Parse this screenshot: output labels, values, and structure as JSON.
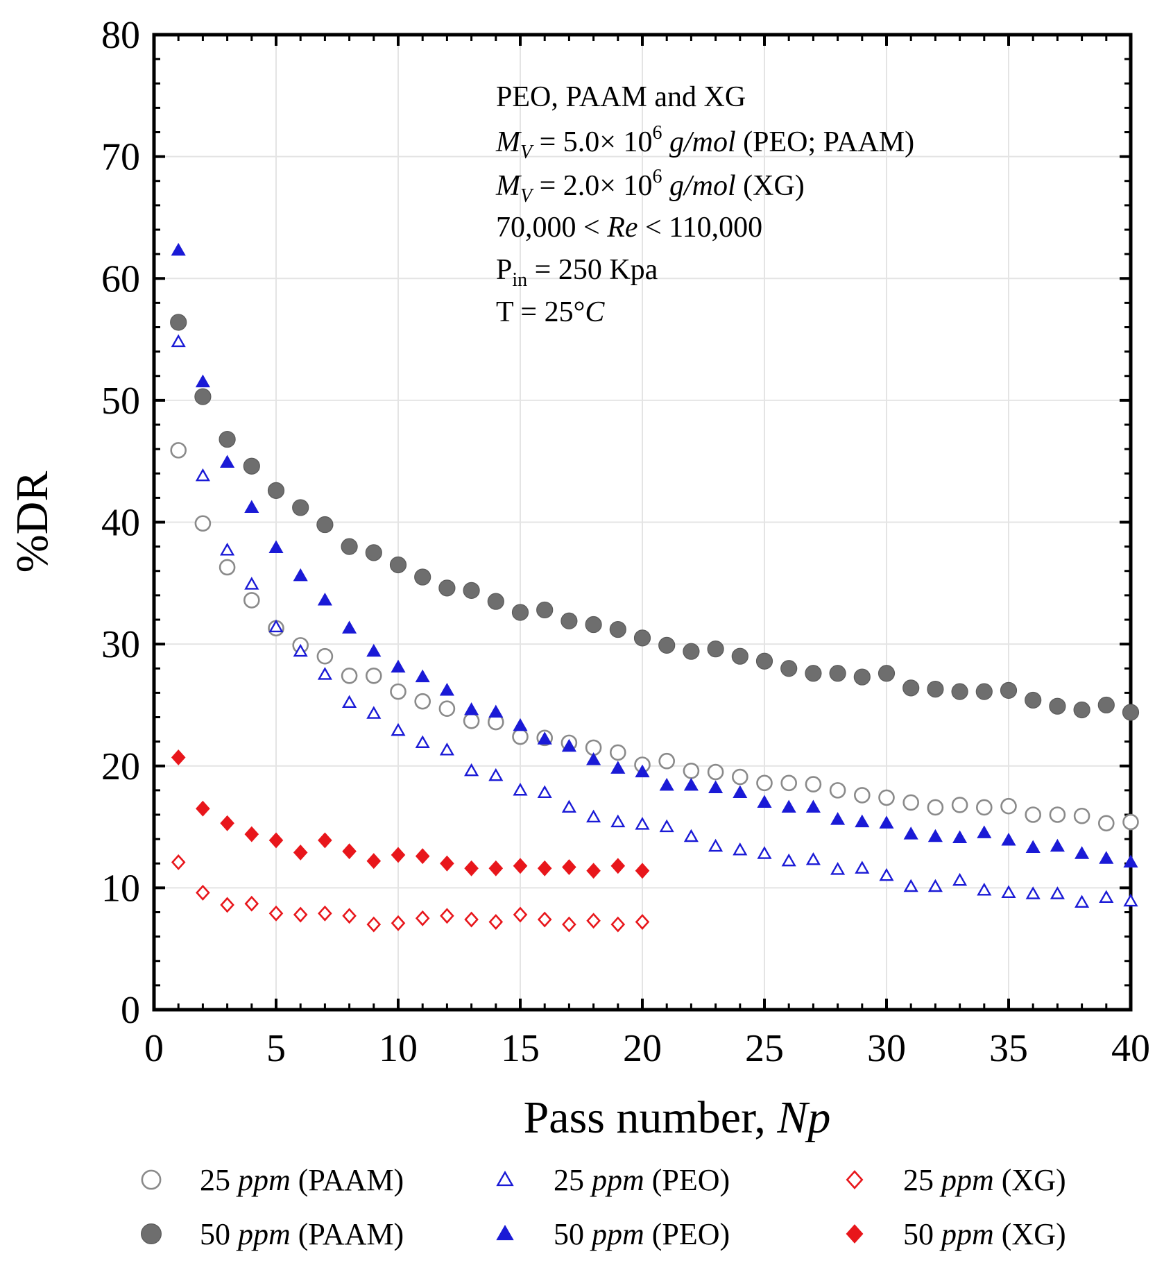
{
  "chart_data": {
    "type": "scatter",
    "title": "",
    "xlabel": "Pass number,",
    "xlabel_var": "Np",
    "ylabel": "%DR",
    "xlim": [
      0,
      40
    ],
    "ylim": [
      0,
      80
    ],
    "xticks": [
      0,
      5,
      10,
      15,
      20,
      25,
      30,
      35,
      40
    ],
    "yticks": [
      0,
      10,
      20,
      30,
      40,
      50,
      60,
      70,
      80
    ],
    "grid": true,
    "annotations": [
      {
        "text": "PEO, PAAM and XG"
      },
      {
        "parts": [
          "M",
          "V",
          " = 5.0× 10",
          "6",
          " g/mol",
          "  (PEO; PAAM)"
        ]
      },
      {
        "parts": [
          "M",
          "V",
          " = 2.0× 10",
          "6",
          " g/mol",
          "  (XG)"
        ]
      },
      {
        "parts": [
          "70,000 < ",
          "Re",
          " < 110,000"
        ]
      },
      {
        "parts": [
          "P",
          "in",
          " = 250 Kpa"
        ]
      },
      {
        "parts": [
          "T = 25°",
          "C"
        ]
      }
    ],
    "series": [
      {
        "name": "25 ppm (PAAM)",
        "label_parts": [
          "25 ",
          "ppm",
          " (PAAM)"
        ],
        "marker": "circle-open",
        "color": "#8a8a8a",
        "x": [
          1,
          2,
          3,
          4,
          5,
          6,
          7,
          8,
          9,
          10,
          11,
          12,
          13,
          14,
          15,
          16,
          17,
          18,
          19,
          20,
          21,
          22,
          23,
          24,
          25,
          26,
          27,
          28,
          29,
          30,
          31,
          32,
          33,
          34,
          35,
          36,
          37,
          38,
          39,
          40
        ],
        "y": [
          45.9,
          39.9,
          36.3,
          33.6,
          31.3,
          29.9,
          29.0,
          27.4,
          27.4,
          26.1,
          25.3,
          24.7,
          23.7,
          23.6,
          22.4,
          22.3,
          21.9,
          21.5,
          21.1,
          20.1,
          20.4,
          19.6,
          19.5,
          19.1,
          18.6,
          18.6,
          18.5,
          18.0,
          17.6,
          17.4,
          17.0,
          16.6,
          16.8,
          16.6,
          16.7,
          16.0,
          16.0,
          15.9,
          15.3,
          15.4
        ]
      },
      {
        "name": "50 ppm (PAAM)",
        "label_parts": [
          "50 ",
          "ppm",
          " (PAAM)"
        ],
        "marker": "circle-filled",
        "color": "#6e6e6e",
        "x": [
          1,
          2,
          3,
          4,
          5,
          6,
          7,
          8,
          9,
          10,
          11,
          12,
          13,
          14,
          15,
          16,
          17,
          18,
          19,
          20,
          21,
          22,
          23,
          24,
          25,
          26,
          27,
          28,
          29,
          30,
          31,
          32,
          33,
          34,
          35,
          36,
          37,
          38,
          39,
          40
        ],
        "y": [
          56.4,
          50.3,
          46.8,
          44.6,
          42.6,
          41.2,
          39.8,
          38.0,
          37.5,
          36.5,
          35.5,
          34.6,
          34.4,
          33.5,
          32.6,
          32.8,
          31.9,
          31.6,
          31.2,
          30.5,
          29.9,
          29.4,
          29.6,
          29.0,
          28.6,
          28.0,
          27.6,
          27.6,
          27.3,
          27.6,
          26.4,
          26.3,
          26.1,
          26.1,
          26.2,
          25.4,
          24.9,
          24.6,
          25.0,
          24.4
        ]
      },
      {
        "name": "25 ppm (PEO)",
        "label_parts": [
          "25 ",
          "ppm",
          " (PEO)"
        ],
        "marker": "triangle-open",
        "color": "#1a1ad6",
        "x": [
          1,
          2,
          3,
          4,
          5,
          6,
          7,
          8,
          9,
          10,
          11,
          12,
          13,
          14,
          15,
          16,
          17,
          18,
          19,
          20,
          21,
          22,
          23,
          24,
          25,
          26,
          27,
          28,
          29,
          30,
          31,
          32,
          33,
          34,
          35,
          36,
          37,
          38,
          39,
          40
        ],
        "y": [
          54.8,
          43.8,
          37.7,
          34.9,
          31.4,
          29.4,
          27.5,
          25.2,
          24.3,
          22.9,
          21.9,
          21.3,
          19.6,
          19.2,
          18.0,
          17.8,
          16.6,
          15.8,
          15.4,
          15.2,
          15.0,
          14.2,
          13.4,
          13.1,
          12.8,
          12.2,
          12.3,
          11.5,
          11.6,
          11.0,
          10.1,
          10.1,
          10.6,
          9.8,
          9.6,
          9.5,
          9.5,
          8.8,
          9.2,
          8.9
        ]
      },
      {
        "name": "50 ppm (PEO)",
        "label_parts": [
          "50 ",
          "ppm",
          " (PEO)"
        ],
        "marker": "triangle-filled",
        "color": "#1a1ad6",
        "x": [
          1,
          2,
          3,
          4,
          5,
          6,
          7,
          8,
          9,
          10,
          11,
          12,
          13,
          14,
          15,
          16,
          17,
          18,
          19,
          20,
          21,
          22,
          23,
          24,
          25,
          26,
          27,
          28,
          29,
          30,
          31,
          32,
          33,
          34,
          35,
          36,
          37,
          38,
          39,
          40
        ],
        "y": [
          62.3,
          51.5,
          44.9,
          41.2,
          37.9,
          35.6,
          33.6,
          31.3,
          29.4,
          28.1,
          27.3,
          26.2,
          24.6,
          24.4,
          23.3,
          22.2,
          21.6,
          20.5,
          19.8,
          19.5,
          18.4,
          18.4,
          18.2,
          17.8,
          17.0,
          16.6,
          16.6,
          15.6,
          15.4,
          15.3,
          14.4,
          14.2,
          14.1,
          14.5,
          13.9,
          13.3,
          13.4,
          12.8,
          12.4,
          12.1
        ]
      },
      {
        "name": "25 ppm (XG)",
        "label_parts": [
          "25 ",
          "ppm",
          " (XG)"
        ],
        "marker": "diamond-open",
        "color": "#e8161b",
        "x": [
          1,
          2,
          3,
          4,
          5,
          6,
          7,
          8,
          9,
          10,
          11,
          12,
          13,
          14,
          15,
          16,
          17,
          18,
          19,
          20
        ],
        "y": [
          12.1,
          9.6,
          8.6,
          8.7,
          7.9,
          7.8,
          7.9,
          7.7,
          7.0,
          7.1,
          7.5,
          7.7,
          7.4,
          7.2,
          7.8,
          7.4,
          7.0,
          7.3,
          7.0,
          7.2
        ]
      },
      {
        "name": "50 ppm (XG)",
        "label_parts": [
          "50 ",
          "ppm",
          " (XG)"
        ],
        "marker": "diamond-filled",
        "color": "#e8161b",
        "x": [
          1,
          2,
          3,
          4,
          5,
          6,
          7,
          8,
          9,
          10,
          11,
          12,
          13,
          14,
          15,
          16,
          17,
          18,
          19,
          20
        ],
        "y": [
          20.7,
          16.5,
          15.3,
          14.4,
          13.9,
          12.9,
          13.9,
          13.0,
          12.2,
          12.7,
          12.6,
          12.0,
          11.6,
          11.6,
          11.8,
          11.6,
          11.7,
          11.4,
          11.8,
          11.4
        ]
      }
    ]
  }
}
